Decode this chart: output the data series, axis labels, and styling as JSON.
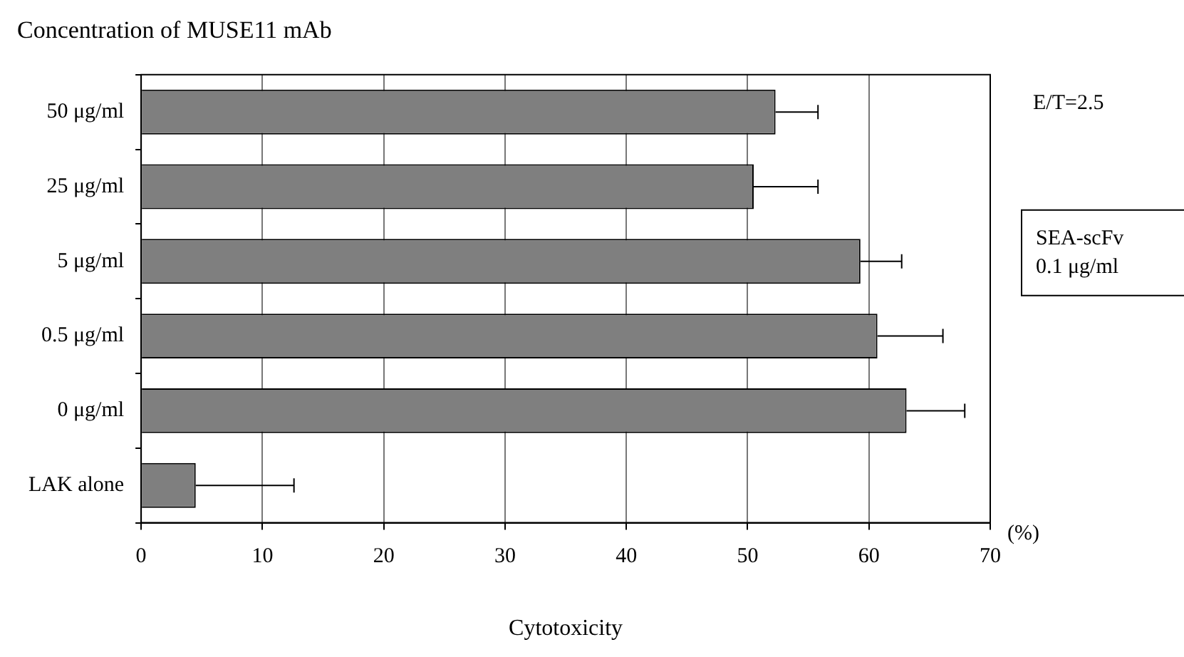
{
  "chart_data": {
    "type": "bar",
    "orientation": "horizontal",
    "title": "Concentration of MUSE11 mAb",
    "xlabel": "Cytotoxicity",
    "categories": [
      "50 μg/ml",
      "25 μg/ml",
      "5 μg/ml",
      "0.5 μg/ml",
      "0 μg/ml",
      "LAK alone"
    ],
    "values": [
      52.3,
      50.5,
      59.3,
      60.7,
      63.1,
      4.5
    ],
    "errors": [
      [
        52.3,
        55.8
      ],
      [
        50.5,
        55.8
      ],
      [
        59.3,
        62.7
      ],
      [
        60.7,
        66.1
      ],
      [
        63.1,
        67.9
      ],
      [
        4.5,
        12.6
      ]
    ],
    "color": "#7f7f7f",
    "xlim": [
      0,
      70
    ],
    "xticks": [
      0,
      10,
      20,
      30,
      40,
      50,
      60,
      70
    ],
    "grid": "x",
    "legend": false,
    "annotations": [
      "E/T=2.5",
      "SEA-scFv\n0.1 μg/ml",
      "(%)"
    ]
  }
}
